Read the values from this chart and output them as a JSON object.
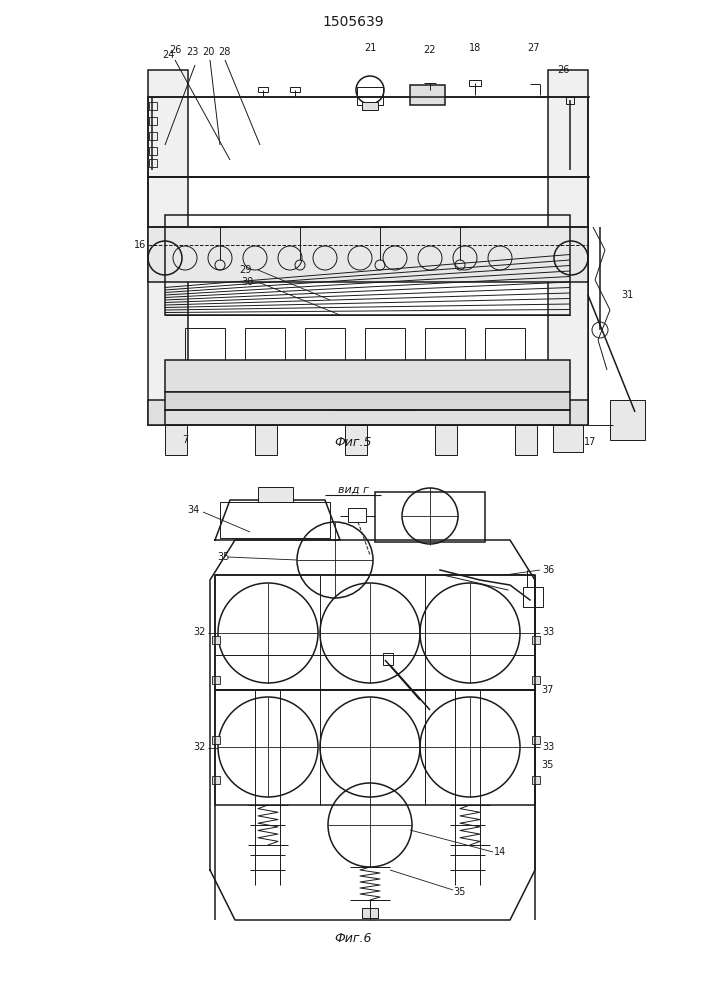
{
  "title": "1505639",
  "title_fontsize": 10,
  "fig1_caption": "Фиг.5",
  "fig2_caption": "Фиг.6",
  "fig2_title": "вид г",
  "bg_color": "#ffffff",
  "line_color": "#1a1a1a",
  "lw": 0.7,
  "lw2": 1.1,
  "lw3": 1.4
}
